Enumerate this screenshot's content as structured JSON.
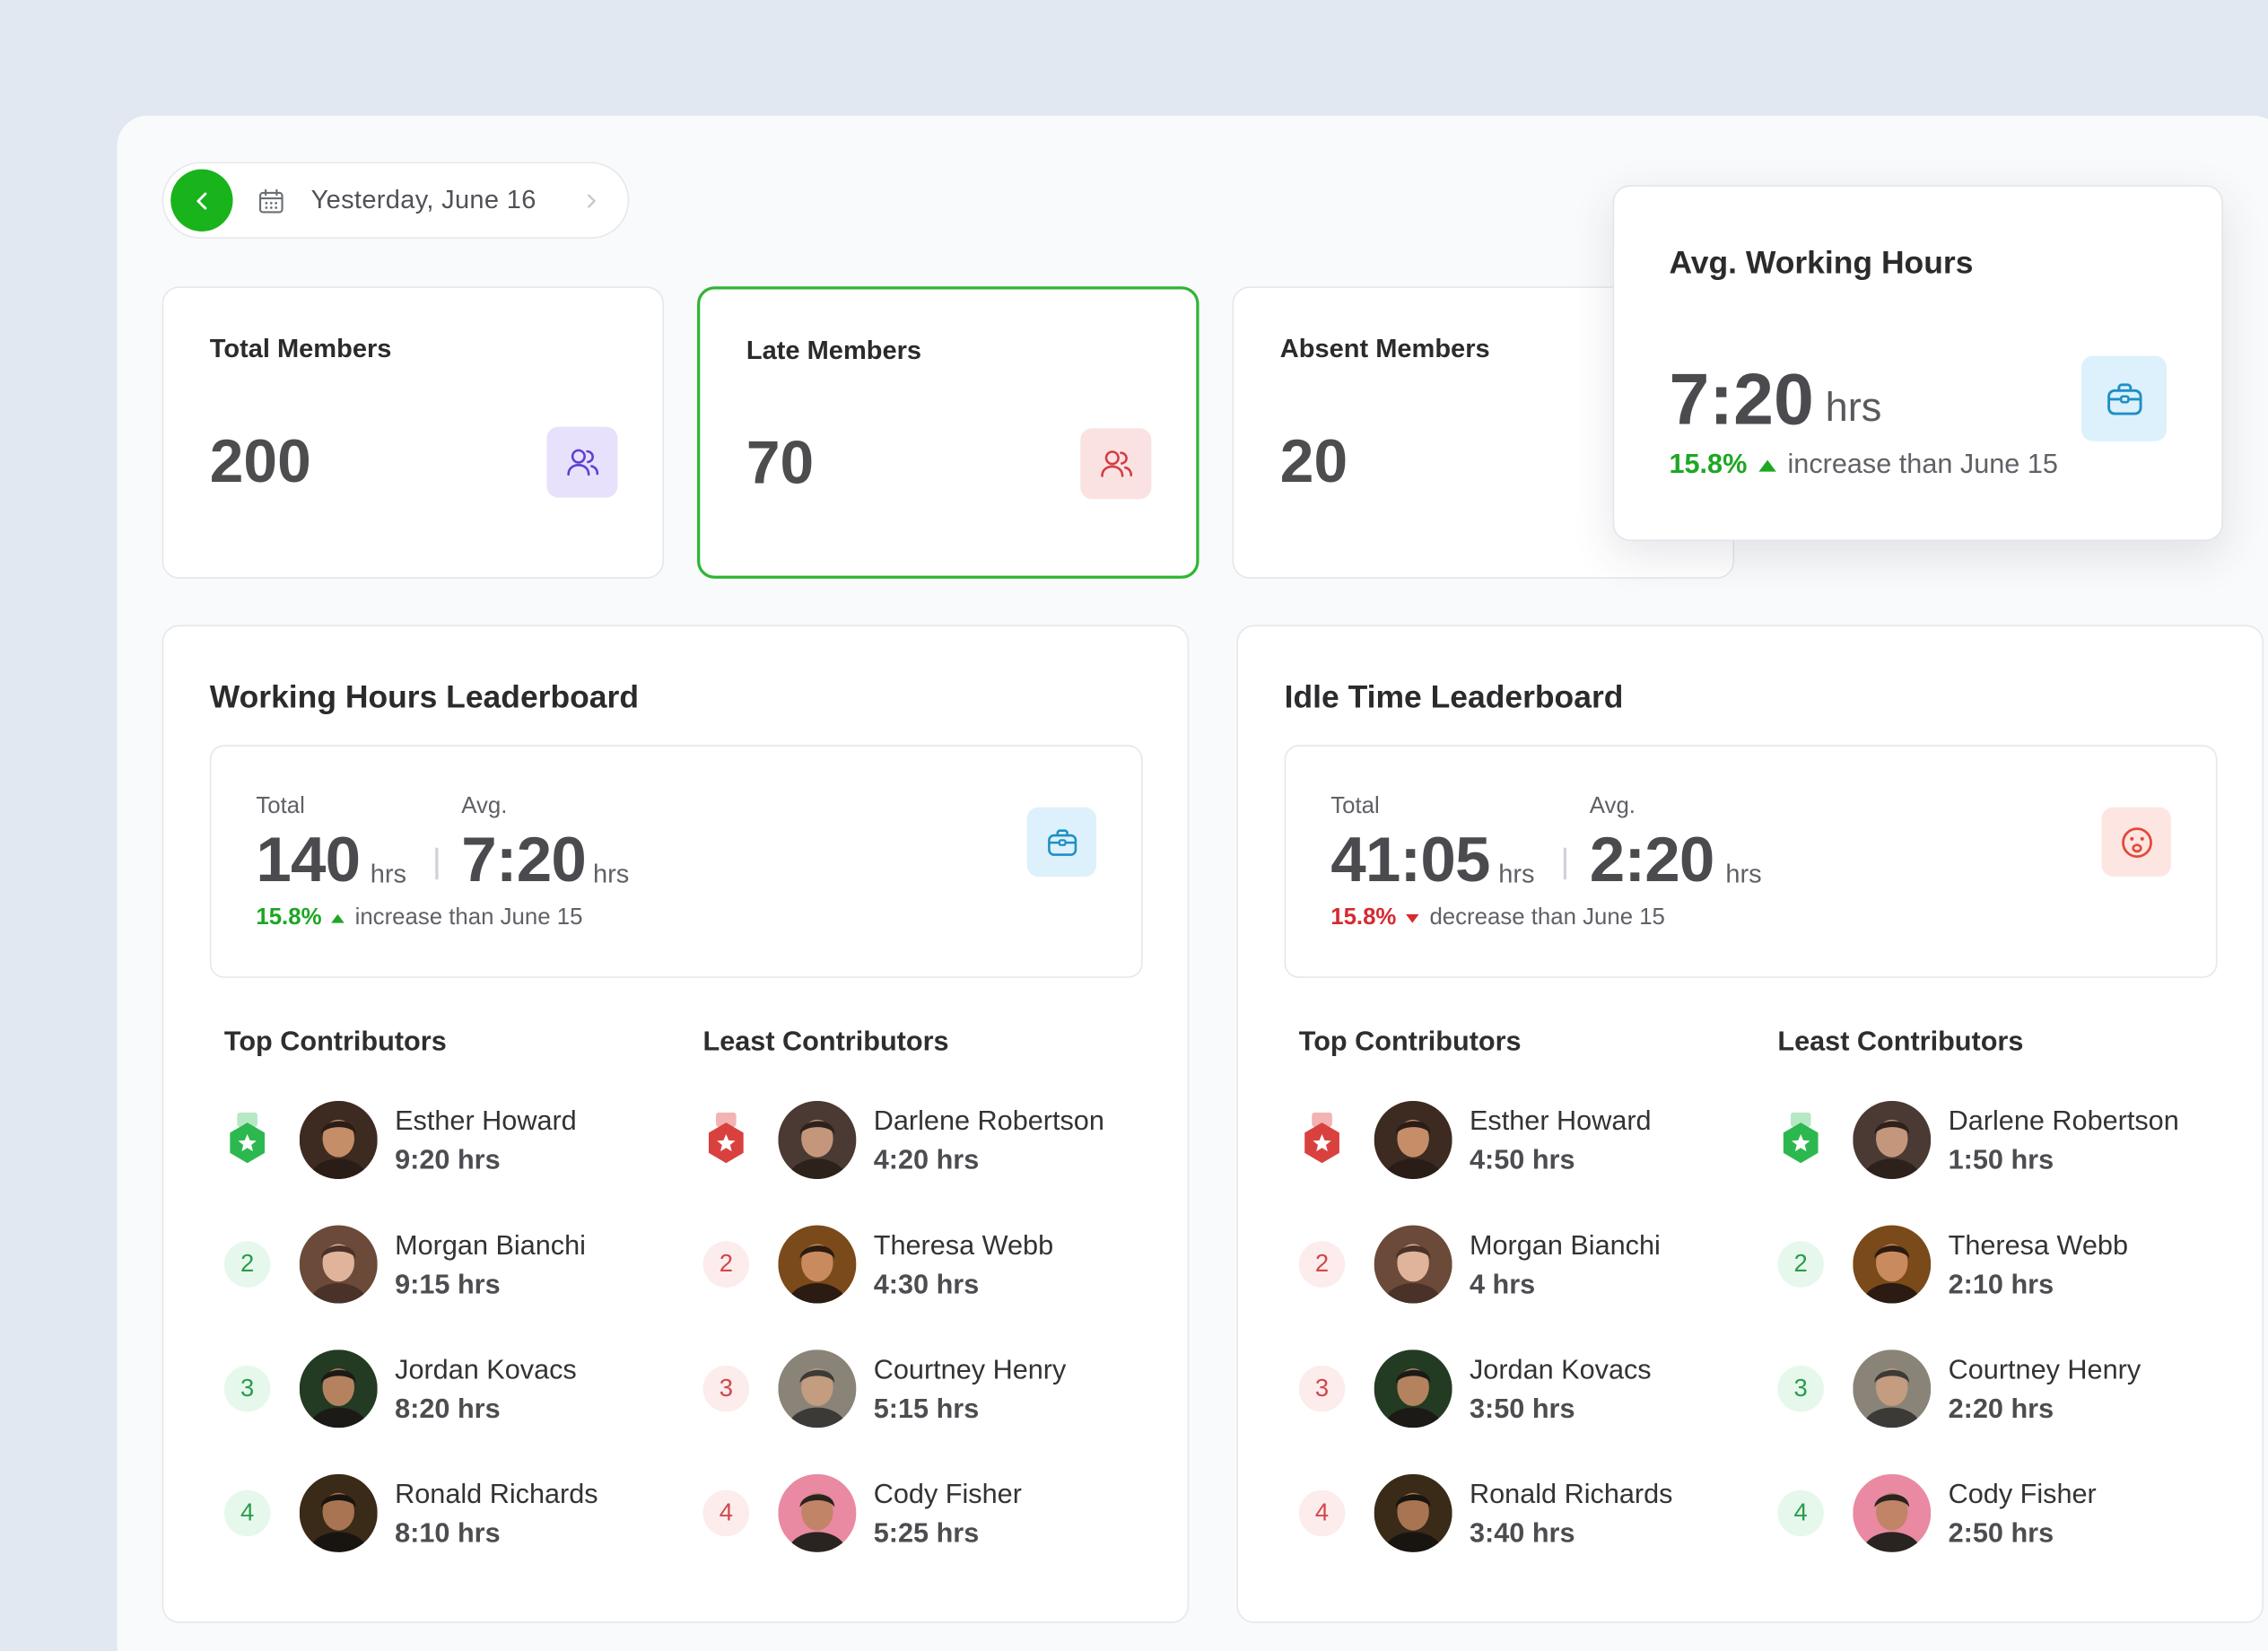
{
  "date_nav": {
    "label": "Yesterday, June 16"
  },
  "stats": [
    {
      "label": "Total Members",
      "value": "200"
    },
    {
      "label": "Late Members",
      "value": "70"
    },
    {
      "label": "Absent Members",
      "value": "20"
    }
  ],
  "avg_card": {
    "title": "Avg. Working Hours",
    "value": "7:20",
    "unit": "hrs",
    "percent": "15.8%",
    "trend_text": "increase than  June 15"
  },
  "working_board": {
    "title": "Working Hours Leaderboard",
    "total_label": "Total",
    "total_value": "140",
    "avg_label": "Avg.",
    "avg_value": "7:20",
    "unit": "hrs",
    "percent": "15.8%",
    "trend_text": "increase than June 15",
    "top_heading": "Top Contributors",
    "least_heading": "Least Contributors",
    "top": [
      {
        "rank": "1",
        "name": "Esther Howard",
        "hours": "9:20 hrs"
      },
      {
        "rank": "2",
        "name": "Morgan Bianchi",
        "hours": "9:15 hrs"
      },
      {
        "rank": "3",
        "name": "Jordan Kovacs",
        "hours": "8:20 hrs"
      },
      {
        "rank": "4",
        "name": "Ronald Richards",
        "hours": "8:10 hrs"
      }
    ],
    "least": [
      {
        "rank": "1",
        "name": "Darlene Robertson",
        "hours": "4:20 hrs"
      },
      {
        "rank": "2",
        "name": "Theresa Webb",
        "hours": "4:30 hrs"
      },
      {
        "rank": "3",
        "name": "Courtney Henry",
        "hours": "5:15 hrs"
      },
      {
        "rank": "4",
        "name": "Cody Fisher",
        "hours": "5:25 hrs"
      }
    ]
  },
  "idle_board": {
    "title": "Idle Time Leaderboard",
    "total_label": "Total",
    "total_value": "41:05",
    "avg_label": "Avg.",
    "avg_value": "2:20",
    "unit": "hrs",
    "percent": "15.8%",
    "trend_text": "decrease than June 15",
    "top_heading": "Top Contributors",
    "least_heading": "Least Contributors",
    "top": [
      {
        "rank": "1",
        "name": "Esther Howard",
        "hours": "4:50 hrs"
      },
      {
        "rank": "2",
        "name": "Morgan Bianchi",
        "hours": "4 hrs"
      },
      {
        "rank": "3",
        "name": "Jordan Kovacs",
        "hours": "3:50 hrs"
      },
      {
        "rank": "4",
        "name": "Ronald Richards",
        "hours": "3:40 hrs"
      }
    ],
    "least": [
      {
        "rank": "1",
        "name": "Darlene Robertson",
        "hours": "1:50 hrs"
      },
      {
        "rank": "2",
        "name": "Theresa Webb",
        "hours": "2:10 hrs"
      },
      {
        "rank": "3",
        "name": "Courtney Henry",
        "hours": "2:20 hrs"
      },
      {
        "rank": "4",
        "name": "Cody Fisher",
        "hours": "2:50 hrs"
      }
    ]
  },
  "colors": {
    "accent_green": "#19b31c",
    "increase": "#1ea624",
    "decrease": "#d42b31",
    "total_icon_bg": "#e8e1fb",
    "late_icon_bg": "#fbe2e2",
    "hours_icon_bg": "#dcf1fb",
    "idle_icon_bg": "#fde6e1"
  },
  "icons": {
    "date_prev": "chevron-left-icon",
    "calendar": "calendar-icon",
    "date_next": "chevron-right-icon",
    "members": "users-icon",
    "hours": "briefcase-icon",
    "idle": "sad-face-icon",
    "first_place": "medal-icon"
  }
}
